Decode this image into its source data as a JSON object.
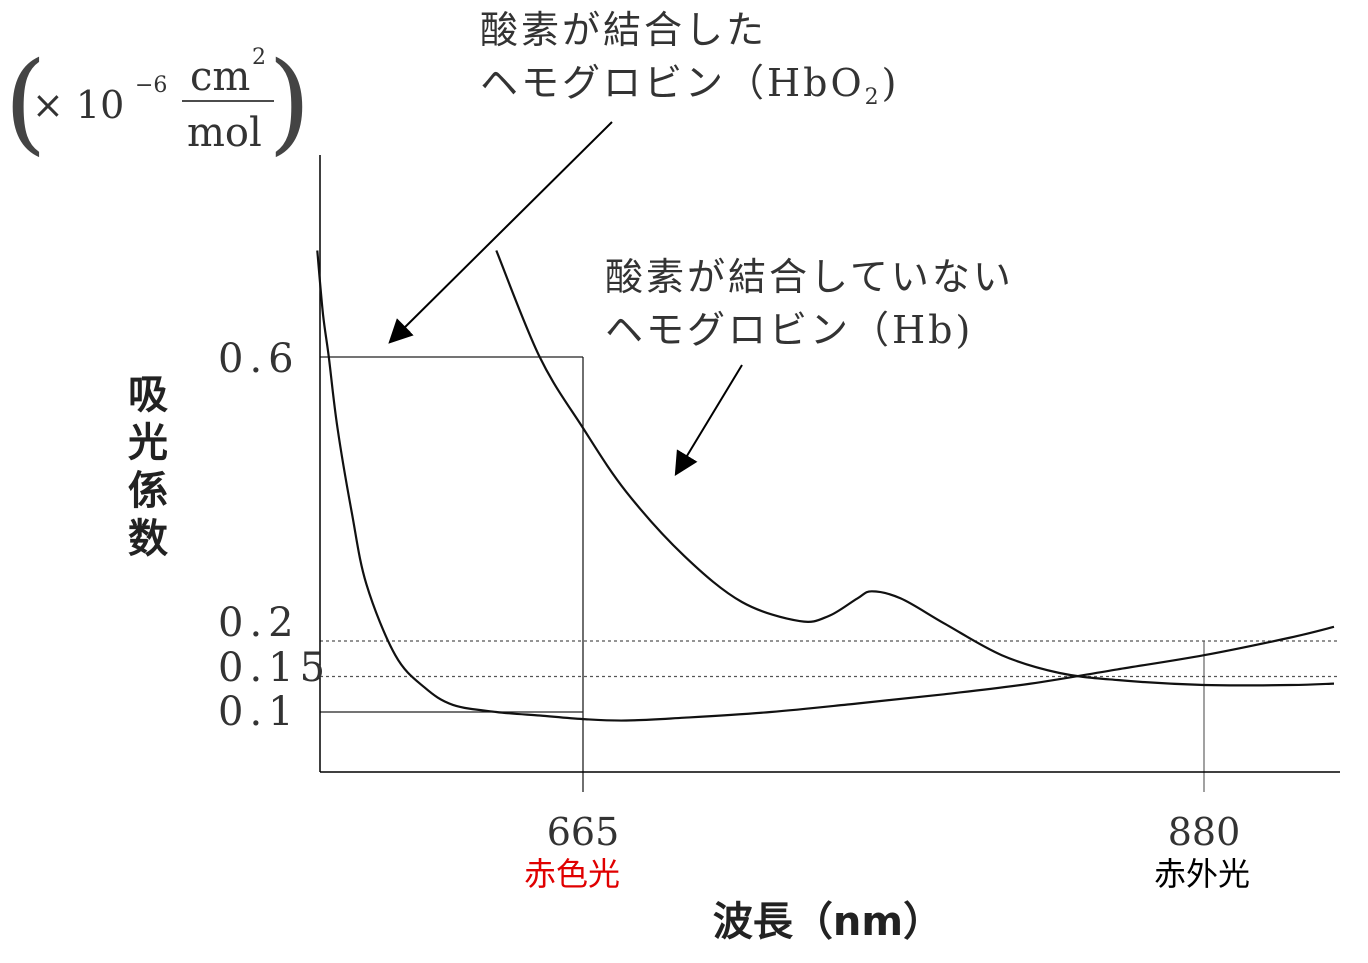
{
  "chart_data": {
    "type": "line",
    "ylabel": "吸光係数",
    "yunit": {
      "open": "(",
      "multiplier": "× 10",
      "exponent": "−6",
      "numerator": "cm",
      "numerator_exponent": "2",
      "denominator": "mol",
      "close": ")"
    },
    "xlabel": "波長（nm）",
    "ylim": [
      0,
      0.85
    ],
    "y_ticks": [
      {
        "value": 0.6,
        "label": "0.6"
      },
      {
        "value": 0.2,
        "label": "0.2"
      },
      {
        "value": 0.15,
        "label": "0.15"
      },
      {
        "value": 0.1,
        "label": "0.1"
      }
    ],
    "x_ticks": [
      {
        "value": 665,
        "label": "665",
        "sublabel": "赤色光",
        "sublabel_color": "#e00000"
      },
      {
        "value": 880,
        "label": "880",
        "sublabel": "赤外光",
        "sublabel_color": "#000000"
      }
    ],
    "series": [
      {
        "name_lines": [
          "酸素が結合した",
          "ヘモグロビン（HbO",
          "2",
          ")"
        ],
        "short": "HbO2",
        "points": [
          [
            573,
            0.75
          ],
          [
            575,
            0.66
          ],
          [
            577,
            0.6
          ],
          [
            580,
            0.5
          ],
          [
            585,
            0.38
          ],
          [
            590,
            0.28
          ],
          [
            600,
            0.18
          ],
          [
            610,
            0.135
          ],
          [
            620,
            0.11
          ],
          [
            635,
            0.1
          ],
          [
            650,
            0.095
          ],
          [
            665,
            0.09
          ],
          [
            680,
            0.088
          ],
          [
            700,
            0.092
          ],
          [
            730,
            0.1
          ],
          [
            760,
            0.112
          ],
          [
            790,
            0.125
          ],
          [
            820,
            0.14
          ],
          [
            850,
            0.16
          ],
          [
            880,
            0.18
          ],
          [
            910,
            0.205
          ],
          [
            925,
            0.22
          ]
        ]
      },
      {
        "name_lines": [
          "酸素が結合していない",
          "ヘモグロビン（Hb)"
        ],
        "short": "Hb",
        "points": [
          [
            635,
            0.75
          ],
          [
            650,
            0.6
          ],
          [
            665,
            0.5
          ],
          [
            680,
            0.41
          ],
          [
            700,
            0.32
          ],
          [
            720,
            0.255
          ],
          [
            740,
            0.228
          ],
          [
            750,
            0.235
          ],
          [
            760,
            0.26
          ],
          [
            765,
            0.27
          ],
          [
            775,
            0.26
          ],
          [
            790,
            0.225
          ],
          [
            810,
            0.18
          ],
          [
            830,
            0.155
          ],
          [
            850,
            0.145
          ],
          [
            880,
            0.138
          ],
          [
            910,
            0.138
          ],
          [
            925,
            0.14
          ]
        ]
      }
    ],
    "guides": {
      "solid_h": [
        0.6,
        0.1
      ],
      "dotted_h": [
        0.2,
        0.15
      ],
      "vertical_at": [
        665,
        880
      ]
    }
  }
}
